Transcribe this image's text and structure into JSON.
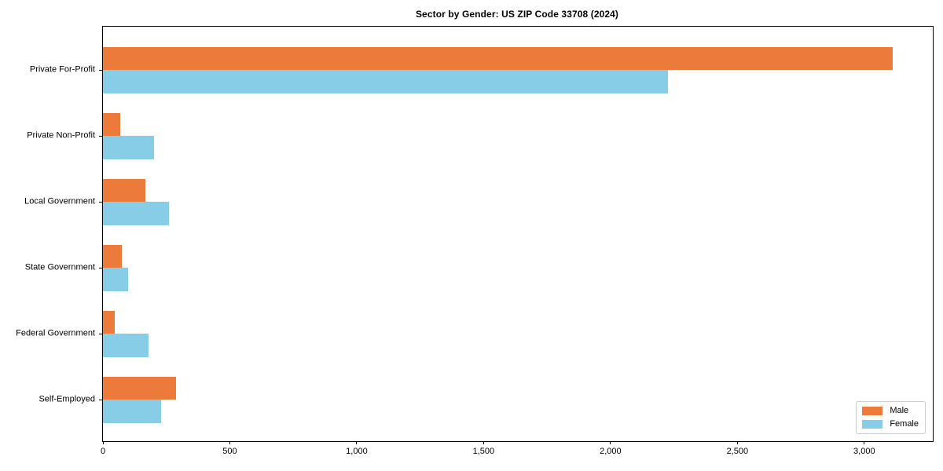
{
  "chart_data": {
    "type": "bar",
    "orientation": "horizontal",
    "title": "Sector by Gender: US ZIP Code 33708 (2024)",
    "categories": [
      "Private For-Profit",
      "Private Non-Profit",
      "Local Government",
      "State Government",
      "Federal Government",
      "Self-Employed"
    ],
    "series": [
      {
        "name": "Male",
        "color": "#EC7A3B",
        "values": [
          3113,
          67,
          167,
          75,
          46,
          287
        ]
      },
      {
        "name": "Female",
        "color": "#87CDE8",
        "values": [
          2225,
          201,
          259,
          100,
          179,
          229
        ]
      }
    ],
    "xlim": [
      0,
      3270
    ],
    "xticks": [
      0,
      500,
      1000,
      1500,
      2000,
      2500,
      3000
    ],
    "xtick_labels": [
      "0",
      "500",
      "1,000",
      "1,500",
      "2,000",
      "2,500",
      "3,000"
    ],
    "xlabel": "",
    "ylabel": "",
    "grid": false,
    "legend_position": "lower right",
    "spine_color": "#000000",
    "background_color": "#ffffff"
  }
}
